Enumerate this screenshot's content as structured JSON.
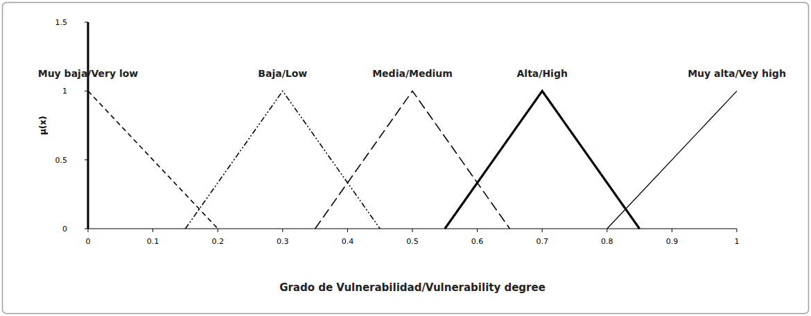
{
  "chart_data": {
    "type": "line",
    "x_label": "Grado de Vulnerabilidad/Vulnerability degree",
    "y_label": "μ(x)",
    "xlim": [
      0,
      1
    ],
    "xticks": [
      0,
      0.1,
      0.2,
      0.3,
      0.4,
      0.5,
      0.6,
      0.7,
      0.8,
      0.9,
      1
    ],
    "ylim": [
      0,
      1.5
    ],
    "yticks": [
      0,
      0.5,
      1,
      1.5
    ],
    "grid": false,
    "series": [
      {
        "name": "Muy baja/Very low",
        "color": "#000000",
        "line_style": "dashed",
        "x": [
          0,
          0.2
        ],
        "values": [
          1,
          0
        ]
      },
      {
        "name": "Baja/Low",
        "color": "#000000",
        "line_style": "dash-dot-dot",
        "x": [
          0.15,
          0.3,
          0.45
        ],
        "values": [
          0,
          1,
          0
        ]
      },
      {
        "name": "Media/Medium",
        "color": "#000000",
        "line_style": "long-dashed",
        "x": [
          0.35,
          0.5,
          0.65
        ],
        "values": [
          0,
          1,
          0
        ]
      },
      {
        "name": "Alta/High",
        "color": "#000000",
        "line_style": "bold",
        "x": [
          0.55,
          0.7,
          0.85
        ],
        "values": [
          0,
          1,
          0
        ]
      },
      {
        "name": "Muy alta/Vey high",
        "color": "#000000",
        "line_style": "solid",
        "x": [
          0.8,
          1
        ],
        "values": [
          0,
          1
        ]
      }
    ]
  }
}
